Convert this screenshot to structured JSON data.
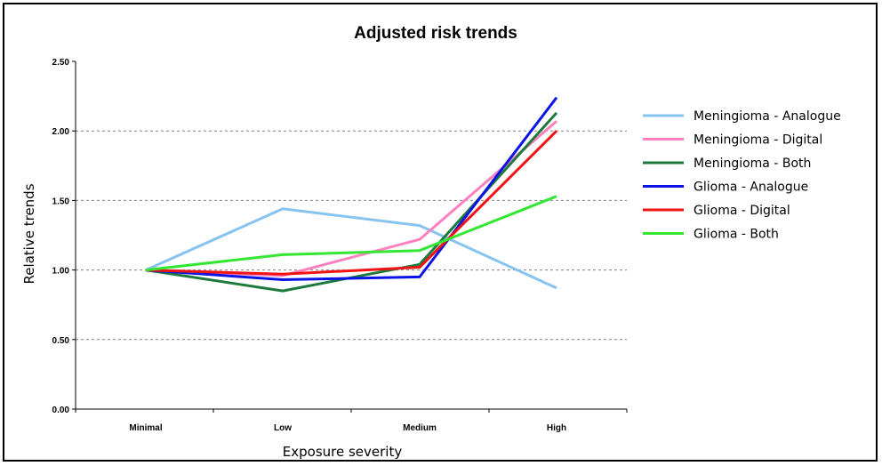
{
  "chart_data": {
    "type": "line",
    "title": "Adjusted risk trends",
    "xlabel": "Exposure severity",
    "ylabel": "Relative trends",
    "categories": [
      "Minimal",
      "Low",
      "Medium",
      "High"
    ],
    "y_ticks": [
      "0.00",
      "0.50",
      "1.00",
      "1.50",
      "2.00",
      "2.50"
    ],
    "ylim": [
      0,
      2.5
    ],
    "grid": "horizontal dotted",
    "legend_position": "right",
    "series": [
      {
        "name": "Meningioma - Analogue",
        "color": "#87c3f0",
        "values": [
          1.0,
          1.44,
          1.32,
          0.87
        ]
      },
      {
        "name": "Meningioma - Digital",
        "color": "#ff80c0",
        "values": [
          1.0,
          0.96,
          1.22,
          2.07
        ]
      },
      {
        "name": "Meningioma - Both",
        "color": "#1e7a3c",
        "values": [
          1.0,
          0.85,
          1.04,
          2.13
        ]
      },
      {
        "name": "Glioma - Analogue",
        "color": "#0a14e6",
        "values": [
          1.0,
          0.93,
          0.95,
          2.24
        ]
      },
      {
        "name": "Glioma - Digital",
        "color": "#f01414",
        "values": [
          1.0,
          0.97,
          1.02,
          2.0
        ]
      },
      {
        "name": "Glioma - Both",
        "color": "#32e632",
        "values": [
          1.0,
          1.11,
          1.14,
          1.53
        ]
      }
    ]
  }
}
